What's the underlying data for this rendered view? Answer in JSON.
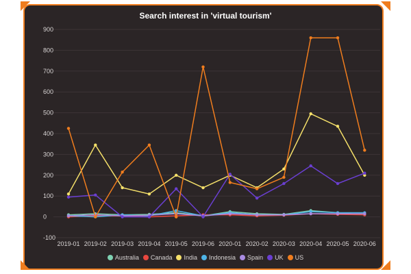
{
  "chart_data": {
    "type": "line",
    "title": "Search interest in 'virtual tourism'",
    "xlabel": "",
    "ylabel": "",
    "ylim": [
      -100,
      900
    ],
    "yticks": [
      -100,
      0,
      100,
      200,
      300,
      400,
      500,
      600,
      700,
      800,
      900
    ],
    "categories": [
      "2019-01",
      "2019-02",
      "2019-03",
      "2019-04",
      "2019-05",
      "2019-06",
      "2020-01",
      "2020-02",
      "2020-03",
      "2020-04",
      "2020-05",
      "2020-06"
    ],
    "series": [
      {
        "name": "Australia",
        "color": "#7fd1b2",
        "values": [
          10,
          15,
          10,
          12,
          20,
          5,
          25,
          15,
          12,
          30,
          20,
          10
        ]
      },
      {
        "name": "Canada",
        "color": "#e8473f",
        "values": [
          0,
          5,
          5,
          0,
          5,
          10,
          10,
          5,
          8,
          15,
          12,
          10
        ]
      },
      {
        "name": "India",
        "color": "#f5e06a",
        "values": [
          110,
          345,
          140,
          110,
          200,
          140,
          200,
          140,
          230,
          495,
          435,
          200
        ]
      },
      {
        "name": "Indonesia",
        "color": "#4db3e6",
        "values": [
          5,
          0,
          10,
          5,
          30,
          5,
          20,
          10,
          10,
          25,
          20,
          20
        ]
      },
      {
        "name": "Spain",
        "color": "#a98be0",
        "values": [
          5,
          10,
          5,
          8,
          15,
          5,
          15,
          10,
          10,
          15,
          15,
          15
        ]
      },
      {
        "name": "UK",
        "color": "#6a3fd1",
        "values": [
          95,
          105,
          0,
          0,
          135,
          0,
          205,
          90,
          160,
          245,
          160,
          210
        ]
      },
      {
        "name": "US",
        "color": "#f07d1e",
        "values": [
          425,
          0,
          215,
          345,
          0,
          720,
          165,
          135,
          190,
          860,
          860,
          320
        ]
      }
    ],
    "legend_position": "bottom",
    "grid": true
  }
}
